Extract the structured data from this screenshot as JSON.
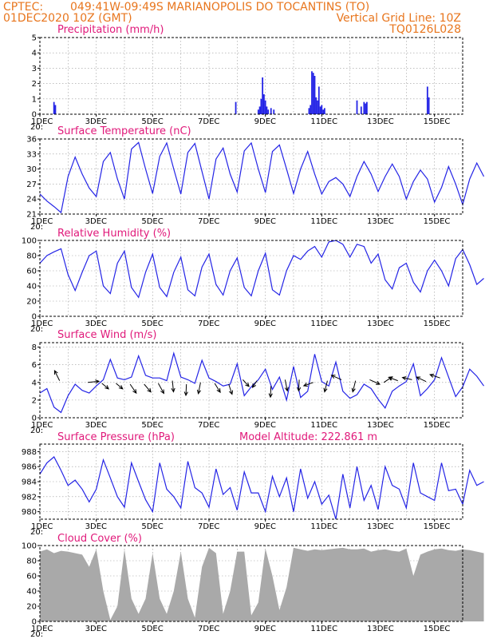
{
  "header": {
    "source": "CPTEC:",
    "location": "049:41W-09:49S  MARIANOPOLIS DO TOCANTINS (TO)",
    "run_time": "01DEC2020 10Z (GMT)",
    "grid_note": "Vertical Grid Line: 10Z",
    "model": "TQ0126L028"
  },
  "colors": {
    "header": "#e8761e",
    "panel_title": "#e0197a",
    "series": "#2424e6",
    "cloud": "#a9a9a9"
  },
  "x_axis": {
    "day_ticks": [
      "1DEC",
      "3DEC",
      "5DEC",
      "7DEC",
      "9DEC",
      "11DEC",
      "13DEC",
      "15DEC"
    ],
    "stub_label": "20:",
    "start_day": 1,
    "end_day": 16,
    "grid_every_days": 1
  },
  "chart_data": [
    {
      "id": "precip",
      "type": "bar",
      "title": "Precipitation (mm/h)",
      "ylim": [
        0,
        5
      ],
      "yticks": [
        "0",
        "1",
        "2",
        "3",
        "4",
        "5"
      ],
      "x_unit": "days from 01DEC2020 10Z",
      "x": [
        0.5,
        0.55,
        6.95,
        7.75,
        7.8,
        7.85,
        7.9,
        7.95,
        8.0,
        8.05,
        8.1,
        8.2,
        8.3,
        9.55,
        9.6,
        9.65,
        9.7,
        9.75,
        9.8,
        9.85,
        9.9,
        9.95,
        10.0,
        10.05,
        10.1,
        11.25,
        11.4,
        11.5,
        11.55,
        11.6,
        13.75,
        13.8
      ],
      "values": [
        0.8,
        0.6,
        0.8,
        0.3,
        0.5,
        1.0,
        2.4,
        1.3,
        0.9,
        0.5,
        0.3,
        0.4,
        0.3,
        0.4,
        0.6,
        2.8,
        2.7,
        2.5,
        1.1,
        0.9,
        1.8,
        0.5,
        0.6,
        0.3,
        0.4,
        0.9,
        0.5,
        0.8,
        0.7,
        0.8,
        1.8,
        1.1
      ]
    },
    {
      "id": "temperature",
      "type": "line",
      "title": "Surface Temperature (nC)",
      "ylim": [
        21,
        36
      ],
      "yticks": [
        "21",
        "24",
        "27",
        "30",
        "33",
        "36"
      ],
      "samples_per_day": 4,
      "values": [
        25,
        23.6,
        22.5,
        21.3,
        28.5,
        32.4,
        29,
        26.2,
        24.5,
        31.5,
        33.3,
        28,
        24,
        34,
        35.3,
        30,
        25.1,
        32.5,
        35.2,
        30,
        25,
        33.3,
        35.1,
        29.5,
        24,
        32,
        34.2,
        29,
        25.4,
        33.6,
        35.2,
        30,
        25.3,
        33.5,
        34.8,
        30,
        25.1,
        30,
        33.5,
        29,
        25,
        27.5,
        28.3,
        27,
        24.5,
        28.5,
        31.5,
        29,
        25.5,
        28.5,
        31,
        28.5,
        24,
        27.5,
        29.8,
        28,
        23.4,
        26.3,
        30.5,
        27,
        22.9,
        28,
        31.2,
        28.5
      ]
    },
    {
      "id": "humidity",
      "type": "line",
      "title": "Relative Humidity (%)",
      "ylim": [
        0,
        100
      ],
      "yticks": [
        "0",
        "20",
        "40",
        "60",
        "80",
        "100"
      ],
      "samples_per_day": 4,
      "values": [
        70,
        80,
        85,
        89,
        55,
        34,
        58,
        80,
        86,
        40,
        30,
        70,
        86,
        38,
        25,
        58,
        82,
        38,
        26,
        58,
        78,
        35,
        27,
        65,
        82,
        42,
        28,
        60,
        77,
        38,
        27,
        60,
        83,
        35,
        28,
        60,
        80,
        75,
        86,
        92,
        78,
        98,
        100,
        95,
        78,
        95,
        92,
        70,
        82,
        48,
        36,
        64,
        70,
        45,
        32,
        60,
        74,
        60,
        40,
        76,
        88,
        68,
        42,
        50
      ]
    },
    {
      "id": "wind",
      "type": "line",
      "title": "Surface Wind (m/s)",
      "ylim": [
        0,
        8.5
      ],
      "yticks": [
        "0",
        "2",
        "4",
        "6",
        "8"
      ],
      "samples_per_day": 4,
      "values": [
        2.8,
        3.3,
        1.2,
        0.6,
        2.5,
        3.8,
        3.1,
        2.8,
        3.6,
        4.3,
        6.6,
        4.5,
        4.3,
        4.6,
        7,
        4.8,
        4.5,
        4.5,
        4.2,
        7.3,
        4.6,
        4.3,
        3.9,
        6.5,
        4.5,
        4.1,
        3.6,
        3.8,
        6.1,
        2.5,
        3.5,
        4.3,
        5.5,
        3.2,
        4.6,
        2,
        5.8,
        2.3,
        3,
        7.2,
        4.1,
        3.6,
        6.3,
        3,
        2.2,
        2.6,
        3.8,
        3.3,
        2.1,
        1.1,
        3,
        3.6,
        4.1,
        6.1,
        2.5,
        3.3,
        4.3,
        6.8,
        4.6,
        2.4,
        3.5,
        5.5,
        4.7,
        3.6
      ],
      "arrows": {
        "x_days": [
          0.7,
          1.7,
          2.2,
          2.7,
          3.2,
          3.7,
          4.2,
          4.7,
          5.2,
          5.7,
          6.2,
          6.7,
          7.2,
          7.7,
          8.2,
          8.7,
          9.2,
          9.7,
          10.2,
          10.7,
          11.2,
          11.7,
          12.2,
          12.7,
          13.2,
          13.7,
          14.2
        ],
        "y_values": [
          4.2,
          4.0,
          3.9,
          3.9,
          3.8,
          3.8,
          3.9,
          4.2,
          3.8,
          4.0,
          3.9,
          3.8,
          4.3,
          4.2,
          3.6,
          4.3,
          4.3,
          4.0,
          4.2,
          4.3,
          4.2,
          4.3,
          4.0,
          4.2,
          4.3,
          4.1,
          4.5
        ],
        "dx": [
          -0.45,
          1.0,
          0.6,
          0.6,
          0.55,
          0.6,
          0.5,
          0.1,
          -0.05,
          -0.2,
          0.5,
          0.3,
          0.55,
          -0.4,
          -0.05,
          0.2,
          -0.05,
          -0.85,
          -0.25,
          -0.9,
          -0.25,
          0.9,
          0.75,
          -0.8,
          -0.85,
          -0.85,
          -0.9
        ],
        "dy": [
          0.9,
          0.1,
          -0.5,
          -0.5,
          -0.8,
          -0.7,
          -0.9,
          -1.0,
          -1.0,
          -1.0,
          -0.8,
          -0.9,
          -0.6,
          -0.6,
          -1.0,
          -1.0,
          -1.0,
          -0.3,
          -1.0,
          0.4,
          -1.0,
          -0.4,
          0.5,
          0.3,
          0.2,
          0.4,
          0.3
        ]
      }
    },
    {
      "id": "pressure",
      "type": "line",
      "title": "Surface Pressure (hPa)",
      "subtitle": "Model Altitude: 222.861 m",
      "ylim": [
        979,
        989
      ],
      "yticks": [
        "980",
        "982",
        "984",
        "986",
        "988"
      ],
      "samples_per_day": 4,
      "values": [
        985,
        986.5,
        987.3,
        985.5,
        983.5,
        984.2,
        983,
        981.3,
        983,
        986.9,
        984.5,
        982,
        980.6,
        986.5,
        984,
        981.6,
        980,
        986.5,
        983,
        982,
        980.5,
        986.7,
        983.2,
        982.5,
        980.6,
        985.7,
        982.3,
        983.2,
        980.2,
        985.3,
        982.5,
        982.5,
        980,
        984.7,
        982,
        984.5,
        980,
        985.7,
        981.8,
        984,
        981,
        982.2,
        979,
        985,
        980.5,
        986,
        981.5,
        983.5,
        980.3,
        986,
        983.5,
        983,
        980.5,
        986.5,
        982.5,
        982,
        981.5,
        986.5,
        982.8,
        983,
        981,
        985.5,
        983.5,
        984
      ]
    },
    {
      "id": "cloud",
      "type": "area",
      "title": "Cloud Cover (%)",
      "ylim": [
        0,
        100
      ],
      "yticks": [
        "0",
        "20",
        "40",
        "60",
        "80",
        "100"
      ],
      "samples_per_day": 4,
      "values": [
        92,
        95,
        90,
        93,
        92,
        90,
        88,
        72,
        95,
        40,
        2,
        20,
        95,
        30,
        10,
        30,
        90,
        30,
        10,
        40,
        92,
        30,
        5,
        72,
        97,
        90,
        10,
        40,
        92,
        92,
        8,
        25,
        96,
        60,
        15,
        45,
        97,
        95,
        93,
        95,
        94,
        95,
        96,
        97,
        95,
        95,
        96,
        92,
        94,
        95,
        93,
        92,
        96,
        60,
        88,
        92,
        95,
        96,
        94,
        93,
        95,
        94,
        92,
        90
      ]
    }
  ]
}
